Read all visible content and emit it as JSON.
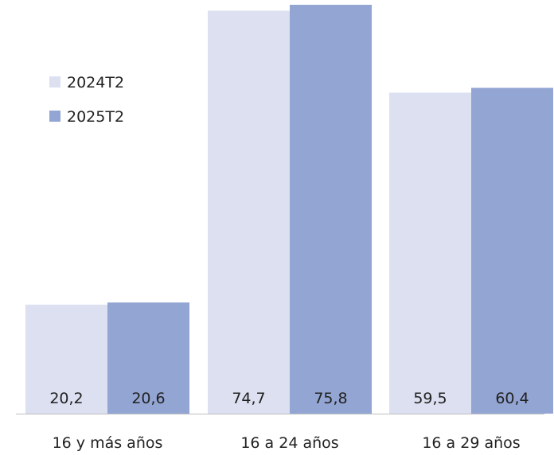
{
  "chart_data": {
    "type": "bar",
    "title": "",
    "xlabel": "",
    "ylabel": "",
    "categories": [
      "16 y más años",
      "16 a 24 años",
      "16 a 29 años"
    ],
    "series": [
      {
        "name": "2024T2",
        "color": "#dce0f0",
        "values": [
          20.2,
          74.7,
          59.5
        ],
        "labels": [
          "20,2",
          "74,7",
          "59,5"
        ]
      },
      {
        "name": "2025T2",
        "color": "#93a5d3",
        "values": [
          20.6,
          75.8,
          60.4
        ],
        "labels": [
          "20,6",
          "75,8",
          "60,4"
        ]
      }
    ],
    "ylim": [
      0,
      75.8
    ],
    "grid": false,
    "legend_position": "top-left",
    "axis_color": "#bfbfbf"
  }
}
